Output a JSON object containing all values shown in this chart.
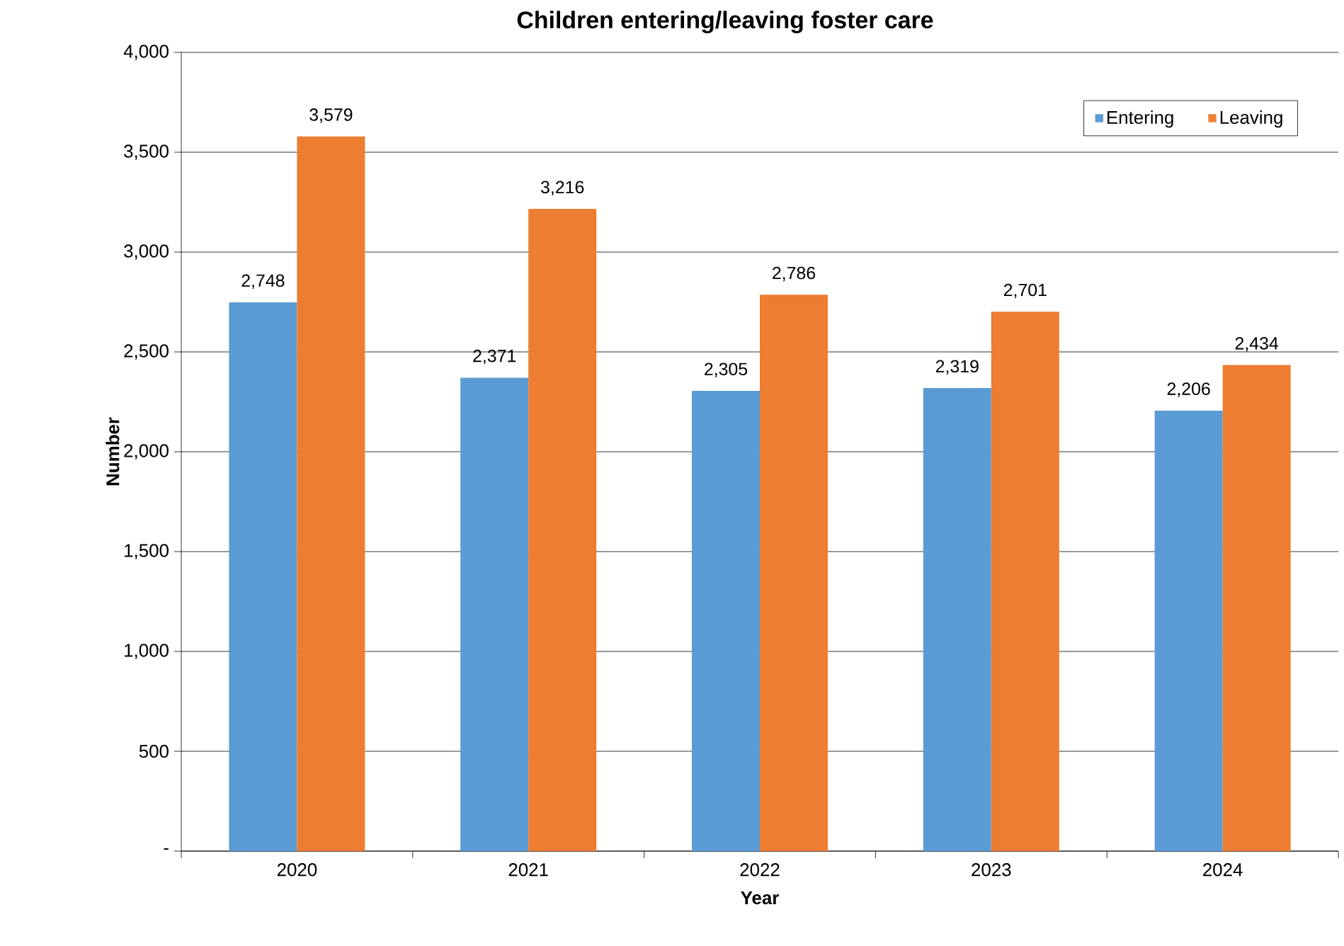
{
  "chart_data": {
    "type": "bar",
    "title": "Children entering/leaving foster care",
    "xlabel": "Year",
    "ylabel": "Number",
    "categories": [
      "2020",
      "2021",
      "2022",
      "2023",
      "2024"
    ],
    "series": [
      {
        "name": "Entering",
        "color": "#5b9bd5",
        "values": [
          2748,
          2371,
          2305,
          2319,
          2206
        ],
        "value_labels": [
          "2,748",
          "2,371",
          "2,305",
          "2,319",
          "2,206"
        ]
      },
      {
        "name": "Leaving",
        "color": "#ed7d31",
        "values": [
          3579,
          3216,
          2786,
          2701,
          2434
        ],
        "value_labels": [
          "3,579",
          "3,216",
          "2,786",
          "2,701",
          "2,434"
        ]
      }
    ],
    "ylim": [
      0,
      4000
    ],
    "yticks": [
      {
        "value": 0,
        "label": "-"
      },
      500,
      {
        "value": 1000,
        "label": "1,000"
      },
      {
        "value": 1500,
        "label": "1,500"
      },
      {
        "value": 2000,
        "label": "2,000"
      },
      {
        "value": 2500,
        "label": "2,500"
      },
      {
        "value": 3000,
        "label": "3,000"
      },
      {
        "value": 3500,
        "label": "3,500"
      },
      {
        "value": 4000,
        "label": "4,000"
      }
    ],
    "grid": "y",
    "legend": "top right"
  }
}
